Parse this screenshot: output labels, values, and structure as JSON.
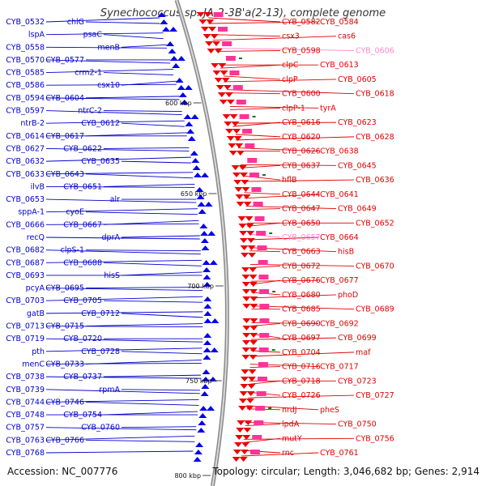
{
  "title": "Synechococcus sp. JA-2-3B'a(2-13), complete genome",
  "footer": {
    "accession": "Accession: NC_007776",
    "summary": "Topology: circular; Length: 3,046,682 bp; Genes: 2,914"
  },
  "colors": {
    "left": "#0000cc",
    "right": "#e00000",
    "pink": "#ff88cc",
    "backbone": "#999999",
    "tick": "#117711"
  },
  "scale": [
    "600 kbp",
    "650 kbp",
    "700 kbp",
    "750 kbp",
    "800 kbp"
  ],
  "left_labels": [
    "CYB_0532",
    "chlG",
    "lspA",
    "psaC",
    "CYB_0558",
    "menB",
    "CYB_0570",
    "CYB_0577",
    "CYB_0585",
    "crm2-1",
    "CYB_0586",
    "csx10",
    "CYB_0594",
    "CYB_0604",
    "CYB_0597",
    "ntrC-2",
    "ntrB-2",
    "CYB_0612",
    "CYB_0614",
    "CYB_0617",
    "CYB_0627",
    "CYB_0622",
    "CYB_0632",
    "CYB_0635",
    "CYB_0633",
    "CYB_0643",
    "ilvB",
    "CYB_0651",
    "CYB_0653",
    "alr",
    "sppA-1",
    "cyoE",
    "CYB_0666",
    "CYB_0667",
    "recQ",
    "dprA",
    "CYB_0682",
    "clpS-1",
    "CYB_0687",
    "CYB_0688",
    "CYB_0693",
    "hisS",
    "pcyA",
    "CYB_0695",
    "CYB_0703",
    "CYB_0705",
    "gatB",
    "CYB_0712",
    "CYB_0713",
    "CYB_0715",
    "CYB_0719",
    "CYB_0720",
    "pth",
    "CYB_0728",
    "menC",
    "CYB_0733",
    "CYB_0738",
    "CYB_0737",
    "CYB_0739",
    "rpmA",
    "CYB_0744",
    "CYB_0746",
    "CYB_0748",
    "CYB_0754",
    "CYB_0757",
    "CYB_0760",
    "CYB_0763",
    "CYB_0766",
    "CYB_0768"
  ],
  "right_labels": [
    "CYB_0582",
    "CYB_0584",
    "csx3",
    "cas6",
    "CYB_0598",
    "CYB_0606",
    "clpC",
    "CYB_0613",
    "clpP",
    "CYB_0605",
    "CYB_0600",
    "CYB_0618",
    "clpP-1",
    "tyrA",
    "CYB_0616",
    "CYB_0623",
    "CYB_0620",
    "CYB_0628",
    "CYB_0626",
    "CYB_0638",
    "CYB_0637",
    "CYB_0645",
    "hflB",
    "CYB_0636",
    "CYB_0644",
    "CYB_0641",
    "CYB_0647",
    "CYB_0649",
    "CYB_0650",
    "CYB_0652",
    "CYB_0657",
    "CYB_0664",
    "CYB_0663",
    "hisB",
    "CYB_0672",
    "CYB_0670",
    "CYB_0676",
    "CYB_0677",
    "CYB_0680",
    "phoD",
    "CYB_0685",
    "CYB_0689",
    "CYB_0690",
    "CYB_0692",
    "CYB_0697",
    "CYB_0699",
    "CYB_0704",
    "maf",
    "CYB_0716",
    "CYB_0717",
    "CYB_0718",
    "CYB_0723",
    "CYB_0726",
    "CYB_0727",
    "nrdJ",
    "pheS",
    "lpdA",
    "CYB_0750",
    "mutY",
    "CYB_0756",
    "rnc",
    "CYB_0761"
  ]
}
